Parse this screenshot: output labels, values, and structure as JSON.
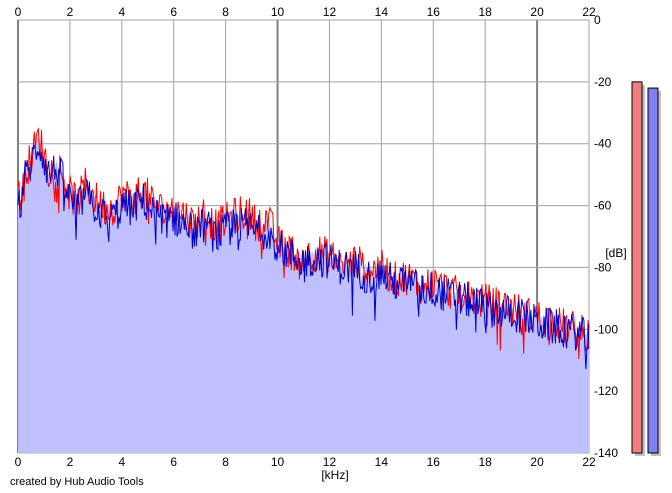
{
  "credit": "created by Hub Audio Tools",
  "colors": {
    "left_channel": "#ff0000",
    "right_channel": "#0000cc",
    "fill": "#c0c0ff",
    "grid": "#a0a0a0",
    "major_grid": "#808080",
    "meter_left": "#f08080",
    "meter_right": "#8080f0",
    "meter_shadow": "#c0c0c0"
  },
  "chart_data": {
    "type": "area",
    "xlabel": "[kHz]",
    "ylabel": "[dB]",
    "xlim": [
      0,
      22
    ],
    "ylim": [
      -140,
      0
    ],
    "xticks": [
      "0",
      "2",
      "4",
      "6",
      "8",
      "10",
      "12",
      "14",
      "16",
      "18",
      "20",
      "22"
    ],
    "yticks": [
      "0",
      "-20",
      "-40",
      "-60",
      "-80",
      "-100",
      "-120",
      "-140"
    ],
    "grid": true,
    "series": [
      {
        "channel": "left",
        "x": [
          0,
          0.1,
          0.2,
          0.4,
          0.6,
          0.8,
          1.0,
          1.2,
          1.5,
          1.8,
          2.0,
          2.3,
          2.6,
          3.0,
          3.4,
          3.8,
          4.0,
          4.4,
          4.8,
          5.2,
          5.6,
          6.0,
          6.4,
          6.8,
          7.2,
          7.6,
          8.0,
          8.4,
          8.8,
          9.2,
          9.6,
          10.0,
          10.5,
          11.0,
          11.5,
          12.0,
          12.5,
          13.0,
          13.5,
          14.0,
          14.5,
          15.0,
          15.5,
          16.0,
          16.5,
          17.0,
          17.5,
          18.0,
          18.5,
          19.0,
          19.5,
          20.0,
          20.5,
          21.0,
          21.5,
          22.0
        ],
        "values": [
          -55,
          -60,
          -50,
          -47,
          -42,
          -38,
          -43,
          -49,
          -46,
          -52,
          -56,
          -59,
          -53,
          -58,
          -61,
          -60,
          -56,
          -58,
          -55,
          -59,
          -62,
          -61,
          -63,
          -66,
          -62,
          -67,
          -65,
          -63,
          -62,
          -66,
          -64,
          -72,
          -75,
          -77,
          -75,
          -76,
          -79,
          -78,
          -81,
          -80,
          -84,
          -83,
          -86,
          -85,
          -87,
          -89,
          -90,
          -91,
          -92,
          -93,
          -95,
          -96,
          -97,
          -99,
          -100,
          -102
        ]
      },
      {
        "channel": "right",
        "x": [
          0,
          0.1,
          0.2,
          0.4,
          0.6,
          0.8,
          1.0,
          1.2,
          1.5,
          1.8,
          2.0,
          2.3,
          2.6,
          3.0,
          3.4,
          3.8,
          4.0,
          4.4,
          4.8,
          5.2,
          5.6,
          6.0,
          6.4,
          6.8,
          7.2,
          7.6,
          8.0,
          8.4,
          8.8,
          9.2,
          9.6,
          10.0,
          10.5,
          11.0,
          11.5,
          12.0,
          12.5,
          13.0,
          13.5,
          14.0,
          14.5,
          15.0,
          15.5,
          16.0,
          16.5,
          17.0,
          17.5,
          18.0,
          18.5,
          19.0,
          19.5,
          20.0,
          20.5,
          21.0,
          21.5,
          22.0
        ],
        "values": [
          -57,
          -62,
          -52,
          -49,
          -44,
          -40,
          -45,
          -50,
          -48,
          -53,
          -58,
          -61,
          -56,
          -61,
          -64,
          -63,
          -60,
          -61,
          -58,
          -62,
          -65,
          -64,
          -66,
          -69,
          -66,
          -70,
          -68,
          -67,
          -66,
          -69,
          -68,
          -73,
          -76,
          -78,
          -77,
          -78,
          -80,
          -80,
          -83,
          -82,
          -85,
          -85,
          -87,
          -87,
          -89,
          -90,
          -91,
          -93,
          -94,
          -95,
          -96,
          -98,
          -99,
          -100,
          -101,
          -103
        ]
      }
    ],
    "level_meters": [
      {
        "channel": "left",
        "level_db": -20
      },
      {
        "channel": "right",
        "level_db": -22
      }
    ]
  }
}
